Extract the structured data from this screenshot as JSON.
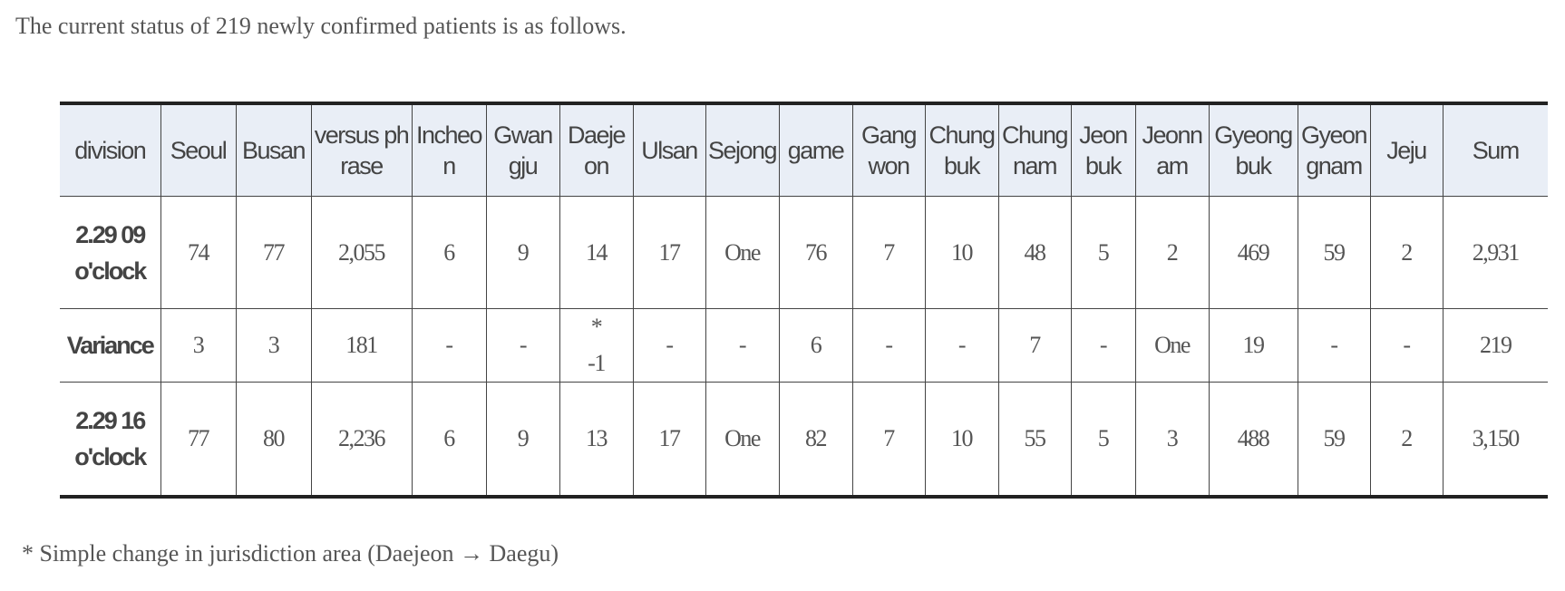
{
  "intro": "The current status of 219 newly confirmed patients is as follows.",
  "table": {
    "header": [
      "division",
      "Seoul",
      "Busan",
      "versus phrase",
      "Incheon",
      "Gwangju",
      "Daejeon",
      "Ulsan",
      "Sejong",
      "game",
      "Gangwon",
      "Chungbuk",
      "Chungnam",
      "Jeonbuk",
      "Jeonnam",
      "Gyeongbuk",
      "Gyeongnam",
      "Jeju",
      "Sum"
    ],
    "rows": [
      [
        "2.29 09 o'clock",
        "74",
        "77",
        "2,055",
        "6",
        "9",
        "14",
        "17",
        "One",
        "76",
        "7",
        "10",
        "48",
        "5",
        "2",
        "469",
        "59",
        "2",
        "2,931"
      ],
      [
        "Variance",
        "3",
        "3",
        "181",
        "-",
        "-",
        "*\n-1",
        "-",
        "-",
        "6",
        "-",
        "-",
        "7",
        "-",
        "One",
        "19",
        "-",
        "-",
        "219"
      ],
      [
        "2.29 16 o'clock",
        "77",
        "80",
        "2,236",
        "6",
        "9",
        "13",
        "17",
        "One",
        "82",
        "7",
        "10",
        "55",
        "5",
        "3",
        "488",
        "59",
        "2",
        "3,150"
      ]
    ]
  },
  "footnote": "* Simple change in jurisdiction area (Daejeon → Daegu)"
}
